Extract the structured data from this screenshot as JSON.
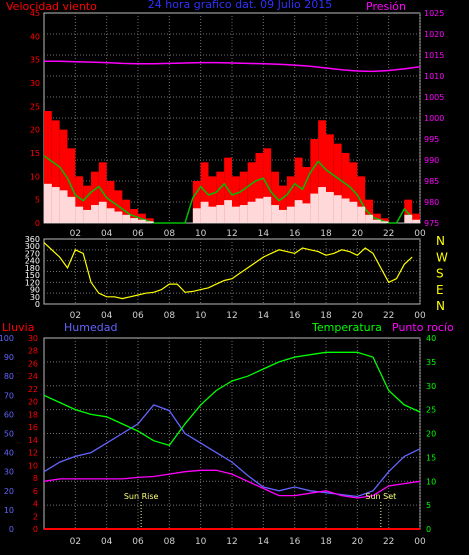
{
  "header": {
    "left_label": "Velocidad viento",
    "title": "24 hora grafico dat.  09 Julio 2015",
    "right_label": "Presión"
  },
  "colors": {
    "background": "#000000",
    "grid": "#707070",
    "wind_gust": "#ff0000",
    "wind_avg": "#00c000",
    "wind_low": "#ffffff",
    "pressure": "#ff00ff",
    "direction": "#ffff00",
    "rain": "#ff0000",
    "humidity": "#6464ff",
    "temperature": "#00ff00",
    "dewpoint": "#ff00ff",
    "sun_marker": "#ffff80",
    "axis_red": "#ff0000",
    "axis_magenta": "#ff00ff",
    "axis_yellow": "#ffff00",
    "axis_blue": "#6464ff",
    "axis_green": "#00ff00",
    "title_blue": "#3030ff"
  },
  "chart_data": [
    {
      "type": "line",
      "panel": "wind-pressure",
      "x_ticks": [
        "02",
        "04",
        "06",
        "08",
        "10",
        "12",
        "14",
        "16",
        "18",
        "20",
        "22",
        "00"
      ],
      "y_left_ticks": [
        "45",
        "40",
        "35",
        "30",
        "25",
        "20",
        "15",
        "10",
        "5",
        "0"
      ],
      "ylim_left": [
        0,
        45
      ],
      "y_right_ticks": [
        "1025",
        "1020",
        "1015",
        "1010",
        "1005",
        "1000",
        "995",
        "990",
        "985",
        "980",
        "975"
      ],
      "ylim_right": [
        975,
        1025
      ],
      "series": [
        {
          "name": "Velocidad viento",
          "axis": "left",
          "x": [
            0,
            0.5,
            1,
            1.5,
            2,
            2.5,
            3,
            3.5,
            4,
            4.5,
            5,
            5.5,
            6,
            6.5,
            7,
            7.5,
            8,
            8.5,
            9,
            9.5,
            10,
            10.5,
            11,
            11.5,
            12,
            12.5,
            13,
            13.5,
            14,
            14.5,
            15,
            15.5,
            16,
            16.5,
            17,
            17.5,
            18,
            18.5,
            19,
            19.5,
            20,
            20.5,
            21,
            21.5,
            22,
            22.5,
            23,
            23.5
          ],
          "values": [
            24,
            22,
            20,
            16,
            10,
            8,
            11,
            13,
            9,
            7,
            5,
            3,
            2,
            1,
            0,
            0,
            0,
            0,
            0,
            9,
            13,
            10,
            11,
            14,
            10,
            11,
            13,
            15,
            16,
            11,
            8,
            10,
            14,
            12,
            18,
            22,
            19,
            17,
            15,
            13,
            10,
            5,
            2,
            1,
            0,
            0,
            5,
            2
          ]
        },
        {
          "name": "Presión",
          "axis": "right",
          "x": [
            0,
            1,
            2,
            3,
            4,
            5,
            6,
            7,
            8,
            9,
            10,
            11,
            12,
            13,
            14,
            15,
            16,
            17,
            18,
            19,
            20,
            21,
            22,
            23,
            24
          ],
          "values": [
            1013.5,
            1013.5,
            1013.4,
            1013.3,
            1013.2,
            1013,
            1012.9,
            1012.9,
            1013,
            1013.1,
            1013.2,
            1013.2,
            1013.1,
            1013,
            1012.9,
            1012.8,
            1012.6,
            1012.3,
            1011.9,
            1011.5,
            1011.2,
            1011.1,
            1011.3,
            1011.7,
            1012.2
          ]
        }
      ]
    },
    {
      "type": "line",
      "panel": "direction",
      "x_ticks": [
        "02",
        "04",
        "06",
        "08",
        "10",
        "12",
        "14",
        "16",
        "18",
        "20",
        "22",
        "00"
      ],
      "y_left_ticks": [
        "360",
        "300",
        "270",
        "240",
        "180",
        "150",
        "120",
        "90",
        "30",
        "0"
      ],
      "ylim_left": [
        0,
        360
      ],
      "y_right_ticks": [
        "N",
        "W",
        "S",
        "E",
        "N"
      ],
      "series": [
        {
          "name": "Dirección viento",
          "x": [
            0,
            0.5,
            1,
            1.5,
            2,
            2.5,
            3,
            3.5,
            4,
            4.5,
            5,
            5.5,
            6,
            6.5,
            7,
            7.5,
            8,
            8.5,
            9,
            9.5,
            10,
            10.5,
            11,
            11.5,
            12,
            12.5,
            13,
            13.5,
            14,
            14.5,
            15,
            15.5,
            16,
            16.5,
            17,
            17.5,
            18,
            18.5,
            19,
            19.5,
            20,
            20.5,
            21,
            21.5,
            22,
            22.5,
            23,
            23.5
          ],
          "values": [
            340,
            300,
            260,
            200,
            300,
            280,
            120,
            60,
            40,
            40,
            30,
            40,
            50,
            60,
            65,
            80,
            110,
            110,
            65,
            70,
            80,
            90,
            110,
            130,
            140,
            170,
            200,
            230,
            260,
            280,
            300,
            290,
            280,
            310,
            300,
            290,
            270,
            280,
            300,
            290,
            270,
            310,
            280,
            200,
            120,
            140,
            220,
            260
          ]
        }
      ]
    },
    {
      "type": "line",
      "panel": "rain-humidity-temperature-dewpoint",
      "labels": {
        "rain": "Lluvia",
        "humidity": "Humedad",
        "temperature": "Temperatura",
        "dewpoint": "Punto rocío",
        "sunrise": "Sun Rise",
        "sunset": "Sun Set"
      },
      "x_ticks": [
        "02",
        "04",
        "06",
        "08",
        "10",
        "12",
        "14",
        "16",
        "18",
        "20",
        "22",
        "00"
      ],
      "y_humidity_ticks": [
        "100",
        "90",
        "80",
        "70",
        "60",
        "50",
        "40",
        "30",
        "20",
        "10",
        "0"
      ],
      "ylim_humidity": [
        0,
        100
      ],
      "y_rain_ticks": [
        "30",
        "28",
        "26",
        "24",
        "22",
        "20",
        "18",
        "16",
        "14",
        "12",
        "10",
        "8",
        "6",
        "4",
        "2",
        "0"
      ],
      "ylim_rain": [
        0,
        30
      ],
      "y_temp_ticks": [
        "40",
        "35",
        "30",
        "25",
        "20",
        "15",
        "10",
        "5",
        "0"
      ],
      "ylim_temp": [
        0,
        40
      ],
      "sunrise_hour": 6.2,
      "sunset_hour": 21.5,
      "series": [
        {
          "name": "Lluvia",
          "axis": "rain",
          "x": [
            0,
            24
          ],
          "values": [
            0,
            0
          ]
        },
        {
          "name": "Humedad",
          "axis": "humidity",
          "x": [
            0,
            1,
            2,
            3,
            4,
            5,
            6,
            7,
            8,
            9,
            10,
            11,
            12,
            13,
            14,
            15,
            16,
            17,
            18,
            19,
            20,
            21,
            22,
            23,
            24
          ],
          "values": [
            30,
            35,
            38,
            40,
            45,
            50,
            55,
            65,
            62,
            50,
            45,
            40,
            35,
            28,
            22,
            20,
            22,
            20,
            19,
            18,
            17,
            20,
            30,
            38,
            42
          ]
        },
        {
          "name": "Temperatura",
          "axis": "temp",
          "x": [
            0,
            1,
            2,
            3,
            4,
            5,
            6,
            7,
            8,
            9,
            10,
            11,
            12,
            13,
            14,
            15,
            16,
            17,
            18,
            19,
            20,
            21,
            22,
            23,
            24
          ],
          "values": [
            28,
            26.5,
            25,
            24,
            23.5,
            22,
            20.5,
            18.5,
            17.5,
            22,
            26,
            29,
            31,
            32,
            33.5,
            35,
            36,
            36.5,
            37,
            37,
            37,
            36,
            29,
            26,
            24.5
          ]
        },
        {
          "name": "Punto rocío",
          "axis": "temp",
          "x": [
            0,
            1,
            2,
            3,
            4,
            5,
            6,
            7,
            8,
            9,
            10,
            11,
            12,
            13,
            14,
            15,
            16,
            17,
            18,
            19,
            20,
            21,
            22,
            23,
            24
          ],
          "values": [
            10,
            10.5,
            10.5,
            10.5,
            10.5,
            10.5,
            10.8,
            11,
            11.5,
            12,
            12.3,
            12.3,
            11.5,
            10,
            8.5,
            7,
            7,
            7.5,
            8,
            7,
            6.5,
            7,
            9,
            9.5,
            10
          ]
        }
      ]
    }
  ]
}
